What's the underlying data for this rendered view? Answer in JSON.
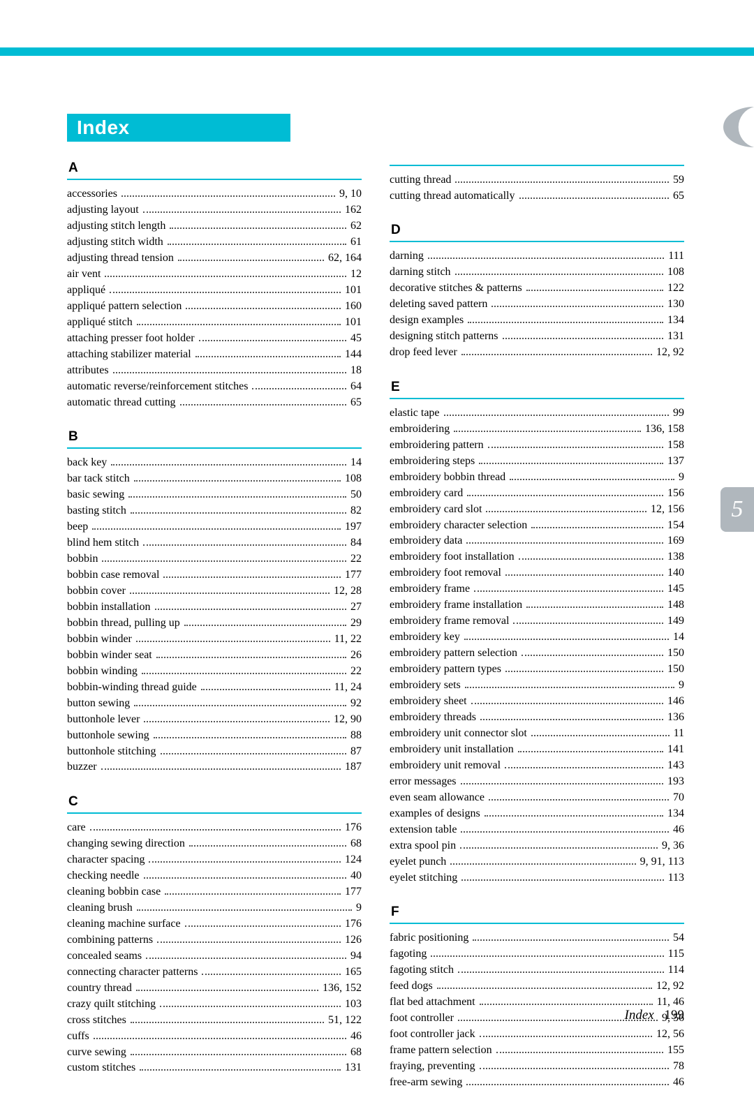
{
  "title": "Index",
  "side_tab": "5",
  "footer_label": "Index",
  "footer_page": "199",
  "colors": {
    "accent": "#00bcd4",
    "tab_bg": "#b0b7bd",
    "text": "#000000",
    "background": "#ffffff"
  },
  "left_sections": [
    {
      "letter": "A",
      "entries": [
        {
          "t": "accessories",
          "p": "9, 10"
        },
        {
          "t": "adjusting layout",
          "p": "162"
        },
        {
          "t": "adjusting stitch length",
          "p": "62"
        },
        {
          "t": "adjusting stitch width",
          "p": "61"
        },
        {
          "t": "adjusting thread tension",
          "p": "62, 164"
        },
        {
          "t": "air vent",
          "p": "12"
        },
        {
          "t": "appliqué",
          "p": "101"
        },
        {
          "t": "appliqué pattern selection",
          "p": "160"
        },
        {
          "t": "appliqué stitch",
          "p": "101"
        },
        {
          "t": "attaching presser foot holder",
          "p": "45"
        },
        {
          "t": "attaching stabilizer material",
          "p": "144"
        },
        {
          "t": "attributes",
          "p": "18"
        },
        {
          "t": "automatic reverse/reinforcement stitches",
          "p": "64"
        },
        {
          "t": "automatic thread cutting",
          "p": "65"
        }
      ]
    },
    {
      "letter": "B",
      "entries": [
        {
          "t": "back key",
          "p": "14"
        },
        {
          "t": "bar tack stitch",
          "p": "108"
        },
        {
          "t": "basic sewing",
          "p": "50"
        },
        {
          "t": "basting stitch",
          "p": "82"
        },
        {
          "t": "beep",
          "p": "197"
        },
        {
          "t": "blind hem stitch",
          "p": "84"
        },
        {
          "t": "bobbin",
          "p": "22"
        },
        {
          "t": "bobbin case removal",
          "p": "177"
        },
        {
          "t": "bobbin cover",
          "p": "12, 28"
        },
        {
          "t": "bobbin installation",
          "p": "27"
        },
        {
          "t": "bobbin thread, pulling up",
          "p": "29"
        },
        {
          "t": "bobbin winder",
          "p": "11, 22"
        },
        {
          "t": "bobbin winder seat",
          "p": "26"
        },
        {
          "t": "bobbin winding",
          "p": "22"
        },
        {
          "t": "bobbin-winding thread guide",
          "p": "11, 24"
        },
        {
          "t": "button sewing",
          "p": "92"
        },
        {
          "t": "buttonhole lever",
          "p": "12, 90"
        },
        {
          "t": "buttonhole sewing",
          "p": "88"
        },
        {
          "t": "buttonhole stitching",
          "p": "87"
        },
        {
          "t": "buzzer",
          "p": "187"
        }
      ]
    },
    {
      "letter": "C",
      "entries": [
        {
          "t": "care",
          "p": "176"
        },
        {
          "t": "changing sewing direction",
          "p": "68"
        },
        {
          "t": "character spacing",
          "p": "124"
        },
        {
          "t": "checking needle",
          "p": "40"
        },
        {
          "t": "cleaning bobbin case",
          "p": "177"
        },
        {
          "t": "cleaning brush",
          "p": "9"
        },
        {
          "t": "cleaning machine surface",
          "p": "176"
        },
        {
          "t": "combining patterns",
          "p": "126"
        },
        {
          "t": "concealed seams",
          "p": "94"
        },
        {
          "t": "connecting character patterns",
          "p": "165"
        },
        {
          "t": "country thread",
          "p": "136, 152"
        },
        {
          "t": "crazy quilt stitching",
          "p": "103"
        },
        {
          "t": "cross stitches",
          "p": "51, 122"
        },
        {
          "t": "cuffs",
          "p": "46"
        },
        {
          "t": "curve sewing",
          "p": "68"
        },
        {
          "t": "custom stitches",
          "p": "131"
        }
      ]
    }
  ],
  "right_continuation": [
    {
      "t": "cutting thread",
      "p": "59"
    },
    {
      "t": "cutting thread automatically",
      "p": "65"
    }
  ],
  "right_sections": [
    {
      "letter": "D",
      "entries": [
        {
          "t": "darning",
          "p": "111"
        },
        {
          "t": "darning stitch",
          "p": "108"
        },
        {
          "t": "decorative stitches & patterns",
          "p": "122"
        },
        {
          "t": "deleting saved pattern",
          "p": "130"
        },
        {
          "t": "design examples",
          "p": "134"
        },
        {
          "t": "designing stitch patterns",
          "p": "131"
        },
        {
          "t": "drop feed lever",
          "p": "12, 92"
        }
      ]
    },
    {
      "letter": "E",
      "entries": [
        {
          "t": "elastic tape",
          "p": "99"
        },
        {
          "t": "embroidering",
          "p": "136, 158"
        },
        {
          "t": "embroidering pattern",
          "p": "158"
        },
        {
          "t": "embroidering steps",
          "p": "137"
        },
        {
          "t": "embroidery bobbin thread",
          "p": "9"
        },
        {
          "t": "embroidery card",
          "p": "156"
        },
        {
          "t": "embroidery card slot",
          "p": "12, 156"
        },
        {
          "t": "embroidery character selection",
          "p": "154"
        },
        {
          "t": "embroidery data",
          "p": "169"
        },
        {
          "t": "embroidery foot installation",
          "p": "138"
        },
        {
          "t": "embroidery foot removal",
          "p": "140"
        },
        {
          "t": "embroidery frame",
          "p": "145"
        },
        {
          "t": "embroidery frame installation",
          "p": "148"
        },
        {
          "t": "embroidery frame removal",
          "p": "149"
        },
        {
          "t": "embroidery key",
          "p": "14"
        },
        {
          "t": "embroidery pattern selection",
          "p": "150"
        },
        {
          "t": "embroidery pattern types",
          "p": "150"
        },
        {
          "t": "embroidery sets",
          "p": "9"
        },
        {
          "t": "embroidery sheet",
          "p": "146"
        },
        {
          "t": "embroidery threads",
          "p": "136"
        },
        {
          "t": "embroidery unit connector slot",
          "p": "11"
        },
        {
          "t": "embroidery unit installation",
          "p": "141"
        },
        {
          "t": "embroidery unit removal",
          "p": "143"
        },
        {
          "t": "error messages",
          "p": "193"
        },
        {
          "t": "even seam allowance",
          "p": "70"
        },
        {
          "t": "examples of designs",
          "p": "134"
        },
        {
          "t": "extension table",
          "p": "46"
        },
        {
          "t": "extra spool pin",
          "p": "9, 36"
        },
        {
          "t": "eyelet punch",
          "p": "9, 91, 113"
        },
        {
          "t": "eyelet stitching",
          "p": "113"
        }
      ]
    },
    {
      "letter": "F",
      "entries": [
        {
          "t": "fabric positioning",
          "p": "54"
        },
        {
          "t": "fagoting",
          "p": "115"
        },
        {
          "t": "fagoting stitch",
          "p": "114"
        },
        {
          "t": "feed dogs",
          "p": "12, 92"
        },
        {
          "t": "flat bed attachment",
          "p": "11, 46"
        },
        {
          "t": "foot controller",
          "p": "9, 56"
        },
        {
          "t": "foot controller jack",
          "p": "12, 56"
        },
        {
          "t": "frame pattern selection",
          "p": "155"
        },
        {
          "t": "fraying, preventing",
          "p": "78"
        },
        {
          "t": "free-arm sewing",
          "p": "46"
        }
      ]
    }
  ]
}
